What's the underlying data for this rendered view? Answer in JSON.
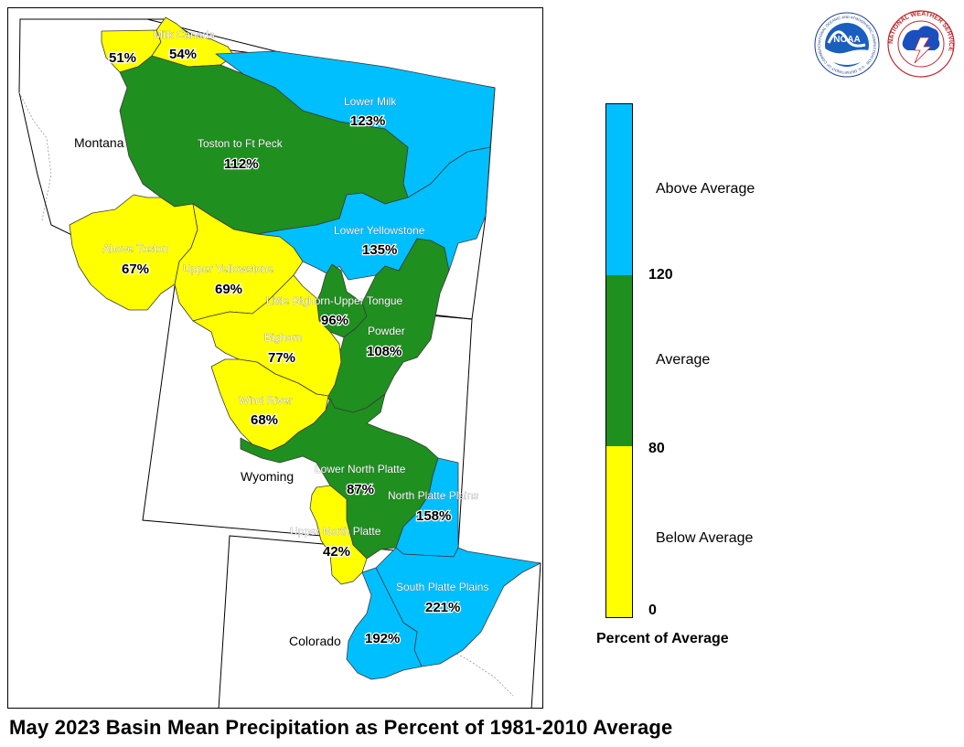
{
  "title": "May 2023 Basin Mean Precipitation as Percent of 1981-2010 Average",
  "logos": [
    {
      "name": "NOAA",
      "text": "NOAA",
      "ring_text": "NATIONAL OCEANIC AND ATMOSPHERIC ADMINISTRATION · U.S. DEPARTMENT OF COMMERCE"
    },
    {
      "name": "National Weather Service",
      "ring_text": "NATIONAL WEATHER SERVICE"
    }
  ],
  "states": [
    "Montana",
    "Wyoming",
    "Colorado"
  ],
  "colors": {
    "below": "#ffff00",
    "average": "#1f8f1f",
    "above": "#00bfff"
  },
  "legend": {
    "title": "Percent of Average",
    "categories": [
      {
        "label": "Above Average",
        "color": "#00bfff",
        "min": 120,
        "max": null
      },
      {
        "label": "Average",
        "color": "#1f8f1f",
        "min": 80,
        "max": 120
      },
      {
        "label": "Below Average",
        "color": "#ffff00",
        "min": 0,
        "max": 80
      }
    ],
    "ticks": [
      "120",
      "80",
      "0"
    ]
  },
  "basins": [
    {
      "name": "",
      "value": "51%",
      "percent": 51,
      "category": "below"
    },
    {
      "name": "Milk Canada",
      "value": "54%",
      "percent": 54,
      "category": "below"
    },
    {
      "name": "Lower Milk",
      "value": "123%",
      "percent": 123,
      "category": "above"
    },
    {
      "name": "Toston to Ft Peck",
      "value": "112%",
      "percent": 112,
      "category": "average"
    },
    {
      "name": "Lower Yellowstone",
      "value": "135%",
      "percent": 135,
      "category": "above"
    },
    {
      "name": "Above Toston",
      "value": "67%",
      "percent": 67,
      "category": "below"
    },
    {
      "name": "Upper Yellowstone",
      "value": "69%",
      "percent": 69,
      "category": "below"
    },
    {
      "name": "Little Bighorn-Upper Tongue",
      "value": "96%",
      "percent": 96,
      "category": "average"
    },
    {
      "name": "Powder",
      "value": "108%",
      "percent": 108,
      "category": "average"
    },
    {
      "name": "Bighorn",
      "value": "77%",
      "percent": 77,
      "category": "below"
    },
    {
      "name": "Wind River",
      "value": "68%",
      "percent": 68,
      "category": "below"
    },
    {
      "name": "Lower North Platte",
      "value": "87%",
      "percent": 87,
      "category": "average"
    },
    {
      "name": "North Platte Plains",
      "value": "158%",
      "percent": 158,
      "category": "above"
    },
    {
      "name": "Upper North Platte",
      "value": "42%",
      "percent": 42,
      "category": "below"
    },
    {
      "name": "South Platte Plains",
      "value": "221%",
      "percent": 221,
      "category": "above"
    },
    {
      "name": "",
      "value": "192%",
      "percent": 192,
      "category": "above"
    }
  ]
}
